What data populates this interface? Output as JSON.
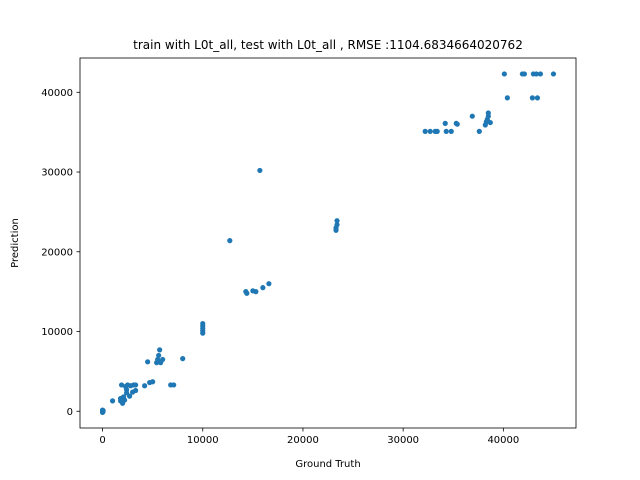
{
  "chart_data": {
    "type": "scatter",
    "title": "train with L0t_all, test with L0t_all , RMSE :1104.6834664020762",
    "xlabel": "Ground Truth",
    "ylabel": "Prediction",
    "xlim": [
      -2250,
      47250
    ],
    "ylim": [
      -2100,
      44300
    ],
    "xticks": [
      0,
      10000,
      20000,
      30000,
      40000
    ],
    "yticks": [
      0,
      10000,
      20000,
      30000,
      40000
    ],
    "xtick_labels": [
      "0",
      "10000",
      "20000",
      "30000",
      "40000"
    ],
    "ytick_labels": [
      "0",
      "10000",
      "20000",
      "30000",
      "40000"
    ],
    "grid": false,
    "marker_color": "#1f77b4",
    "series": [
      {
        "points": [
          [
            0,
            0
          ],
          [
            0,
            150
          ],
          [
            30,
            -80
          ],
          [
            60,
            60
          ],
          [
            0,
            -150
          ],
          [
            40,
            80
          ],
          [
            1000,
            1300
          ],
          [
            1800,
            1300
          ],
          [
            1800,
            1600
          ],
          [
            1900,
            3300
          ],
          [
            2000,
            1000
          ],
          [
            2100,
            1800
          ],
          [
            2200,
            1400
          ],
          [
            2300,
            3100
          ],
          [
            2400,
            2700
          ],
          [
            2400,
            2300
          ],
          [
            2500,
            3300
          ],
          [
            2700,
            1900
          ],
          [
            2800,
            3200
          ],
          [
            3000,
            2400
          ],
          [
            3100,
            3300
          ],
          [
            3300,
            3300
          ],
          [
            3300,
            2600
          ],
          [
            4200,
            3200
          ],
          [
            4500,
            6200
          ],
          [
            4700,
            3600
          ],
          [
            5000,
            3700
          ],
          [
            5400,
            6100
          ],
          [
            5500,
            6500
          ],
          [
            5600,
            7000
          ],
          [
            5700,
            7700
          ],
          [
            5800,
            6100
          ],
          [
            6000,
            6500
          ],
          [
            6800,
            3300
          ],
          [
            7100,
            3300
          ],
          [
            8000,
            6600
          ],
          [
            10000,
            9800
          ],
          [
            10000,
            10100
          ],
          [
            10000,
            10400
          ],
          [
            10000,
            10700
          ],
          [
            10000,
            11000
          ],
          [
            12700,
            21400
          ],
          [
            14300,
            15000
          ],
          [
            14400,
            14800
          ],
          [
            15000,
            15100
          ],
          [
            15300,
            15000
          ],
          [
            15700,
            30200
          ],
          [
            16000,
            15500
          ],
          [
            16600,
            16000
          ],
          [
            23300,
            22700
          ],
          [
            23300,
            23000
          ],
          [
            23400,
            23400
          ],
          [
            23400,
            23900
          ],
          [
            32200,
            35100
          ],
          [
            32700,
            35100
          ],
          [
            33200,
            35100
          ],
          [
            33400,
            35100
          ],
          [
            34200,
            36100
          ],
          [
            34300,
            35100
          ],
          [
            34800,
            35100
          ],
          [
            35300,
            36100
          ],
          [
            35400,
            36000
          ],
          [
            36900,
            37000
          ],
          [
            37600,
            35100
          ],
          [
            38200,
            35900
          ],
          [
            38300,
            36300
          ],
          [
            38400,
            36600
          ],
          [
            38500,
            37000
          ],
          [
            38500,
            37400
          ],
          [
            38700,
            36200
          ],
          [
            40100,
            42300
          ],
          [
            40400,
            39300
          ],
          [
            41900,
            42300
          ],
          [
            42100,
            42300
          ],
          [
            42900,
            39300
          ],
          [
            43000,
            42300
          ],
          [
            43300,
            42300
          ],
          [
            43400,
            39300
          ],
          [
            43700,
            42300
          ],
          [
            45000,
            42300
          ]
        ]
      }
    ]
  }
}
